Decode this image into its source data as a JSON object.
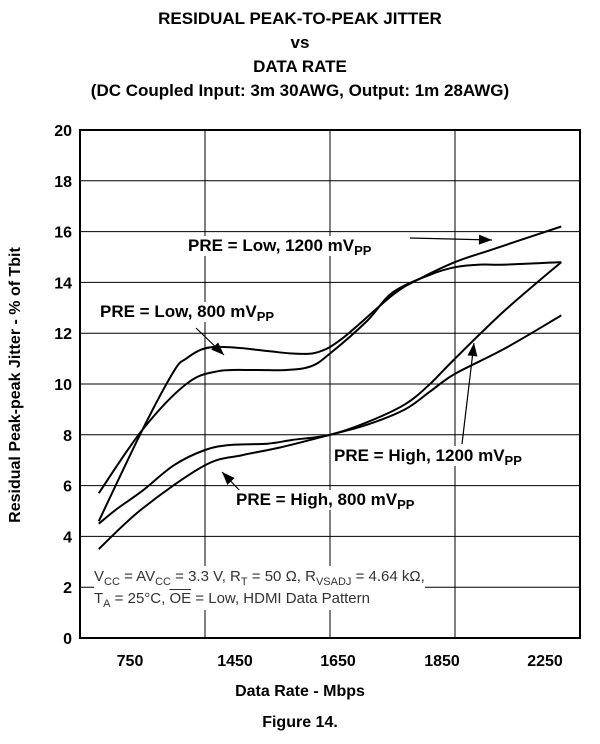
{
  "title": {
    "line1": "RESIDUAL PEAK-TO-PEAK JITTER",
    "line2": "vs",
    "line3": "DATA RATE",
    "line4": "(DC Coupled Input: 3m 30AWG, Output: 1m 28AWG)"
  },
  "figure_caption": "Figure 14.",
  "conditions": {
    "vcc": "V",
    "vcc_sub": "CC",
    "eq1": " = AV",
    "avcc_sub": "CC",
    "eq2": " = 3.3 V, R",
    "rt_sub": "T",
    "eq3": " = 50 Ω, R",
    "rvs_sub": "VSADJ",
    "eq4": " = 4.64 kΩ,",
    "ta": "T",
    "ta_sub": "A",
    "eq5": " = 25°C, ",
    "oe": "OE",
    "eq6": " = Low, HDMI Data Pattern"
  },
  "annotations": {
    "low1200": {
      "text": "PRE = Low, 1200 mV",
      "sub": "PP"
    },
    "low800": {
      "text": "PRE = Low, 800 mV",
      "sub": "PP"
    },
    "high1200": {
      "text": "PRE = High, 1200 mV",
      "sub": "PP"
    },
    "high800": {
      "text": "PRE = High, 800 mV",
      "sub": "PP"
    }
  },
  "chart_data": {
    "type": "line",
    "title": "RESIDUAL PEAK-TO-PEAK JITTER vs DATA RATE (DC Coupled Input: 3m 30AWG, Output: 1m 28AWG)",
    "xlabel": "Data Rate - Mbps",
    "ylabel": "Residual Peak-peak Jitter - % of Tbit",
    "x_ticks": [
      "750",
      "1450",
      "1650",
      "1850",
      "2250"
    ],
    "ylim": [
      0,
      20
    ],
    "y_ticks": [
      0,
      2,
      4,
      6,
      8,
      10,
      12,
      14,
      16,
      18,
      20
    ],
    "grid": true,
    "series": [
      {
        "name": "PRE = Low, 1200 mVPP",
        "points": [
          [
            0.15,
            5.7
          ],
          [
            0.5,
            8.2
          ],
          [
            0.85,
            10.0
          ],
          [
            1.1,
            10.5
          ],
          [
            1.4,
            10.55
          ],
          [
            1.65,
            10.55
          ],
          [
            1.85,
            10.7
          ],
          [
            2.0,
            11.2
          ],
          [
            2.3,
            12.5
          ],
          [
            2.5,
            13.6
          ],
          [
            2.8,
            14.3
          ],
          [
            3.0,
            14.6
          ],
          [
            3.2,
            14.7
          ],
          [
            3.4,
            14.7
          ],
          [
            3.85,
            14.8
          ]
        ]
      },
      {
        "name": "PRE = Low, 800 mVPP",
        "points": [
          [
            0.15,
            4.6
          ],
          [
            0.5,
            8.2
          ],
          [
            0.75,
            10.5
          ],
          [
            0.85,
            11.0
          ],
          [
            1.0,
            11.4
          ],
          [
            1.2,
            11.45
          ],
          [
            1.5,
            11.3
          ],
          [
            1.7,
            11.2
          ],
          [
            1.9,
            11.25
          ],
          [
            2.1,
            11.8
          ],
          [
            2.5,
            13.5
          ],
          [
            2.7,
            14.1
          ],
          [
            3.0,
            14.8
          ],
          [
            3.3,
            15.3
          ],
          [
            3.85,
            16.2
          ]
        ]
      },
      {
        "name": "PRE = High, 1200 mVPP",
        "points": [
          [
            0.15,
            4.5
          ],
          [
            0.3,
            5.1
          ],
          [
            0.5,
            5.8
          ],
          [
            0.75,
            6.8
          ],
          [
            1.0,
            7.4
          ],
          [
            1.2,
            7.6
          ],
          [
            1.5,
            7.65
          ],
          [
            1.7,
            7.8
          ],
          [
            2.0,
            8.0
          ],
          [
            2.3,
            8.5
          ],
          [
            2.6,
            9.2
          ],
          [
            2.8,
            10.0
          ],
          [
            3.0,
            11.0
          ],
          [
            3.4,
            12.9
          ],
          [
            3.85,
            14.8
          ]
        ]
      },
      {
        "name": "PRE = High, 800 mVPP",
        "points": [
          [
            0.15,
            3.5
          ],
          [
            0.5,
            5.1
          ],
          [
            1.0,
            6.8
          ],
          [
            1.3,
            7.2
          ],
          [
            1.6,
            7.5
          ],
          [
            2.0,
            8.0
          ],
          [
            2.3,
            8.4
          ],
          [
            2.6,
            9.0
          ],
          [
            2.8,
            9.7
          ],
          [
            3.0,
            10.4
          ],
          [
            3.4,
            11.4
          ],
          [
            3.85,
            12.7
          ]
        ]
      }
    ]
  }
}
